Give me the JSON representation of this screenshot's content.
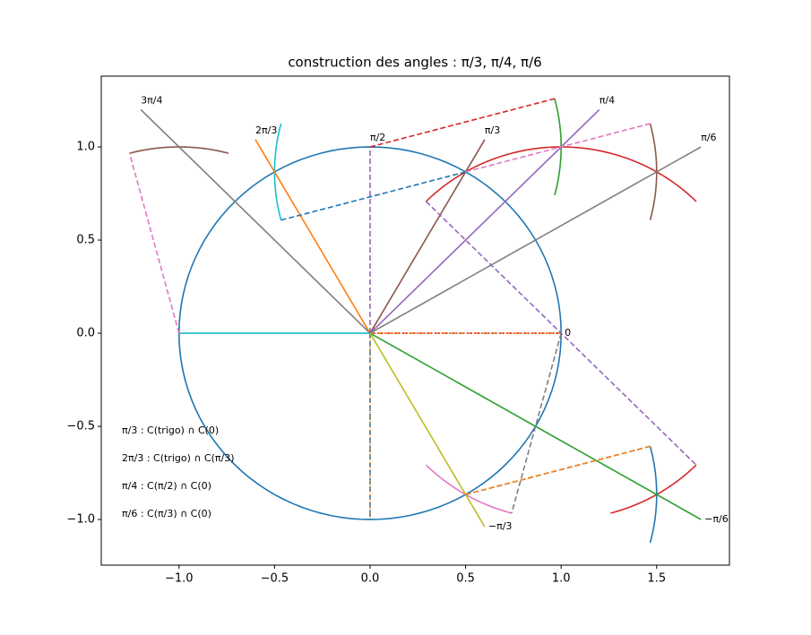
{
  "chart_data": {
    "type": "construction",
    "title": "construction des angles : π/3, π/4, π/6",
    "xlim": [
      -1.407,
      1.881
    ],
    "ylim": [
      -1.245,
      1.38
    ],
    "xticks": [
      {
        "value": -1.0,
        "label": "−1.0"
      },
      {
        "value": -0.5,
        "label": "−0.5"
      },
      {
        "value": 0.0,
        "label": "0.0"
      },
      {
        "value": 0.5,
        "label": "0.5"
      },
      {
        "value": 1.0,
        "label": "1.0"
      },
      {
        "value": 1.5,
        "label": "1.5"
      }
    ],
    "yticks": [
      {
        "value": -1.0,
        "label": "−1.0"
      },
      {
        "value": -0.5,
        "label": "−0.5"
      },
      {
        "value": 0.0,
        "label": "0.0"
      },
      {
        "value": 0.5,
        "label": "0.5"
      },
      {
        "value": 1.0,
        "label": "1.0"
      }
    ],
    "lines": [
      {
        "color": "#17becf",
        "style": "solid",
        "x": [
          -1,
          0
        ],
        "y": [
          0,
          0
        ]
      },
      {
        "color": "#ff7f0e",
        "style": "dashed",
        "x": [
          0,
          1
        ],
        "y": [
          0,
          0
        ],
        "label": "0"
      },
      {
        "color": "#d62728",
        "style": "dotted",
        "x": [
          0,
          1
        ],
        "y": [
          0,
          0
        ]
      },
      {
        "color": "#9467bd",
        "style": "dashed",
        "x": [
          0,
          0
        ],
        "y": [
          0,
          1
        ],
        "label": "π/2"
      },
      {
        "color": "#1f77b4",
        "style": "dashed",
        "x": [
          0,
          0
        ],
        "y": [
          0,
          -1
        ]
      },
      {
        "color": "#ff7f0e",
        "style": "dotted",
        "x": [
          0,
          0
        ],
        "y": [
          0,
          -1
        ]
      },
      {
        "color": "#8c564b",
        "style": "solid",
        "x": [
          0,
          0.6
        ],
        "y": [
          0,
          1.039
        ],
        "label": "π/3"
      },
      {
        "color": "#ff7f0e",
        "style": "solid",
        "x": [
          0,
          -0.6
        ],
        "y": [
          0,
          1.039
        ],
        "label": "2π/3"
      },
      {
        "color": "#9467bd",
        "style": "solid",
        "x": [
          0,
          1.2
        ],
        "y": [
          0,
          1.2
        ],
        "label": "π/4"
      },
      {
        "color": "#7f7f7f",
        "style": "solid",
        "x": [
          0,
          -1.2
        ],
        "y": [
          0,
          1.2
        ],
        "label": "3π/4"
      },
      {
        "color": "#7f7f7f",
        "style": "solid",
        "x": [
          0,
          1.732
        ],
        "y": [
          0,
          1.0
        ],
        "label": "π/6"
      },
      {
        "color": "#2ca02c",
        "style": "solid",
        "x": [
          0,
          1.732
        ],
        "y": [
          0,
          -1.0
        ],
        "label": "−π/6"
      },
      {
        "color": "#bcbd22",
        "style": "solid",
        "x": [
          0,
          0.6
        ],
        "y": [
          0,
          -1.039
        ],
        "label": "−π/3"
      },
      {
        "color": "#1f77b4",
        "style": "dashed",
        "x": [
          -0.466,
          0.5
        ],
        "y": [
          0.607,
          0.866
        ]
      },
      {
        "color": "#d62728",
        "style": "dashed",
        "x": [
          0,
          0.966
        ],
        "y": [
          1,
          1.259
        ]
      },
      {
        "color": "#e377c2",
        "style": "dashed",
        "x": [
          0.5,
          1.466
        ],
        "y": [
          0.866,
          1.125
        ]
      },
      {
        "color": "#e377c2",
        "style": "dashed",
        "x": [
          -1,
          -1.259
        ],
        "y": [
          0,
          0.966
        ]
      },
      {
        "color": "#9467bd",
        "style": "dashed",
        "x": [
          0.293,
          1.707
        ],
        "y": [
          0.707,
          -0.707
        ]
      },
      {
        "color": "#1f77b4",
        "style": "dashed",
        "x": [
          0.5,
          1.466
        ],
        "y": [
          -0.866,
          -0.607
        ]
      },
      {
        "color": "#ff7f0e",
        "style": "dashed",
        "x": [
          0.5,
          1.466
        ],
        "y": [
          -0.866,
          -0.607
        ]
      },
      {
        "color": "#7f7f7f",
        "style": "dashed",
        "x": [
          1,
          0.741
        ],
        "y": [
          0,
          -0.966
        ]
      }
    ],
    "arcs": [
      {
        "color": "#1f77b4",
        "center": [
          0,
          0
        ],
        "radius": 1,
        "theta": [
          0,
          360
        ]
      },
      {
        "color": "#8c564b",
        "center": [
          -1,
          0
        ],
        "radius": 1,
        "theta": [
          75,
          105
        ]
      },
      {
        "color": "#17becf",
        "center": [
          0.5,
          0.866
        ],
        "radius": 1,
        "theta": [
          165,
          195
        ]
      },
      {
        "color": "#d62728",
        "center": [
          1,
          0
        ],
        "radius": 1,
        "theta": [
          45,
          135
        ]
      },
      {
        "color": "#2ca02c",
        "center": [
          0,
          1
        ],
        "radius": 1,
        "theta": [
          -15,
          15
        ]
      },
      {
        "color": "#8c564b",
        "center": [
          0.5,
          0.866
        ],
        "radius": 1,
        "theta": [
          -15,
          15
        ]
      },
      {
        "color": "#e377c2",
        "center": [
          1,
          0
        ],
        "radius": 1,
        "theta": [
          225,
          255
        ]
      },
      {
        "color": "#d62728",
        "center": [
          1,
          0
        ],
        "radius": 1,
        "theta": [
          -75,
          -45
        ]
      },
      {
        "color": "#1f77b4",
        "center": [
          0.5,
          -0.866
        ],
        "radius": 1,
        "theta": [
          -15,
          15
        ]
      }
    ],
    "notes": [
      "π/3 : C(trigo) ∩ C(0)",
      "2π/3 : C(trigo) ∩ C(π/3)",
      "π/4 : C(π/2) ∩ C(0)",
      "π/6 : C(π/3) ∩ C(0)"
    ]
  }
}
